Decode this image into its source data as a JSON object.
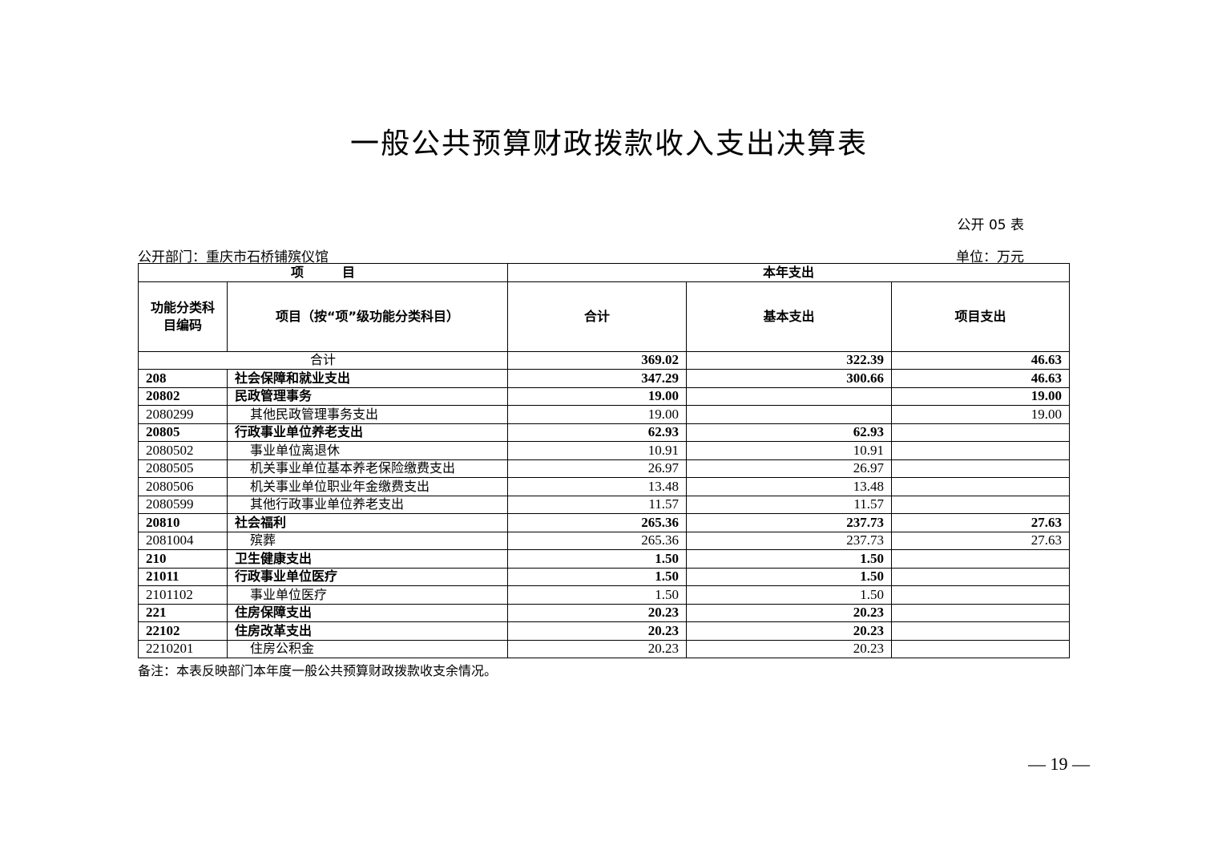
{
  "header": {
    "title": "一般公共预算财政拨款收入支出决算表",
    "table_label": "公开 05 表",
    "department": "公开部门：重庆市石桥铺殡仪馆",
    "unit": "单位：万元"
  },
  "table": {
    "group_headers": [
      "项　　　目",
      "本年支出"
    ],
    "columns": [
      "功能分类科目编码",
      "项目（按“项”级功能分类科目）",
      "合计",
      "基本支出",
      "项目支出"
    ],
    "total": {
      "label": "合计",
      "total": "369.02",
      "basic": "322.39",
      "project": "46.63"
    },
    "rows": [
      {
        "code": "208",
        "name": "社会保障和就业支出",
        "total": "347.29",
        "basic": "300.66",
        "project": "46.63",
        "bold": true
      },
      {
        "code": "20802",
        "name": "民政管理事务",
        "total": "19.00",
        "basic": null,
        "project": "19.00",
        "bold": true
      },
      {
        "code": "2080299",
        "name": "其他民政管理事务支出",
        "total": "19.00",
        "basic": null,
        "project": "19.00",
        "bold": false
      },
      {
        "code": "20805",
        "name": "行政事业单位养老支出",
        "total": "62.93",
        "basic": "62.93",
        "project": null,
        "bold": true
      },
      {
        "code": "2080502",
        "name": "事业单位离退休",
        "total": "10.91",
        "basic": "10.91",
        "project": null,
        "bold": false
      },
      {
        "code": "2080505",
        "name": "机关事业单位基本养老保险缴费支出",
        "total": "26.97",
        "basic": "26.97",
        "project": null,
        "bold": false
      },
      {
        "code": "2080506",
        "name": "机关事业单位职业年金缴费支出",
        "total": "13.48",
        "basic": "13.48",
        "project": null,
        "bold": false
      },
      {
        "code": "2080599",
        "name": "其他行政事业单位养老支出",
        "total": "11.57",
        "basic": "11.57",
        "project": null,
        "bold": false
      },
      {
        "code": "20810",
        "name": "社会福利",
        "total": "265.36",
        "basic": "237.73",
        "project": "27.63",
        "bold": true
      },
      {
        "code": "2081004",
        "name": "殡葬",
        "total": "265.36",
        "basic": "237.73",
        "project": "27.63",
        "bold": false
      },
      {
        "code": "210",
        "name": "卫生健康支出",
        "total": "1.50",
        "basic": "1.50",
        "project": null,
        "bold": true
      },
      {
        "code": "21011",
        "name": "行政事业单位医疗",
        "total": "1.50",
        "basic": "1.50",
        "project": null,
        "bold": true
      },
      {
        "code": "2101102",
        "name": "事业单位医疗",
        "total": "1.50",
        "basic": "1.50",
        "project": null,
        "bold": false
      },
      {
        "code": "221",
        "name": "住房保障支出",
        "total": "20.23",
        "basic": "20.23",
        "project": null,
        "bold": true
      },
      {
        "code": "22102",
        "name": "住房改革支出",
        "total": "20.23",
        "basic": "20.23",
        "project": null,
        "bold": true
      },
      {
        "code": "2210201",
        "name": "住房公积金",
        "total": "20.23",
        "basic": "20.23",
        "project": null,
        "bold": false
      }
    ]
  },
  "footer": {
    "note": "备注：本表反映部门本年度一般公共预算财政拨款收支余情况。",
    "page_number": "— 19 —"
  }
}
